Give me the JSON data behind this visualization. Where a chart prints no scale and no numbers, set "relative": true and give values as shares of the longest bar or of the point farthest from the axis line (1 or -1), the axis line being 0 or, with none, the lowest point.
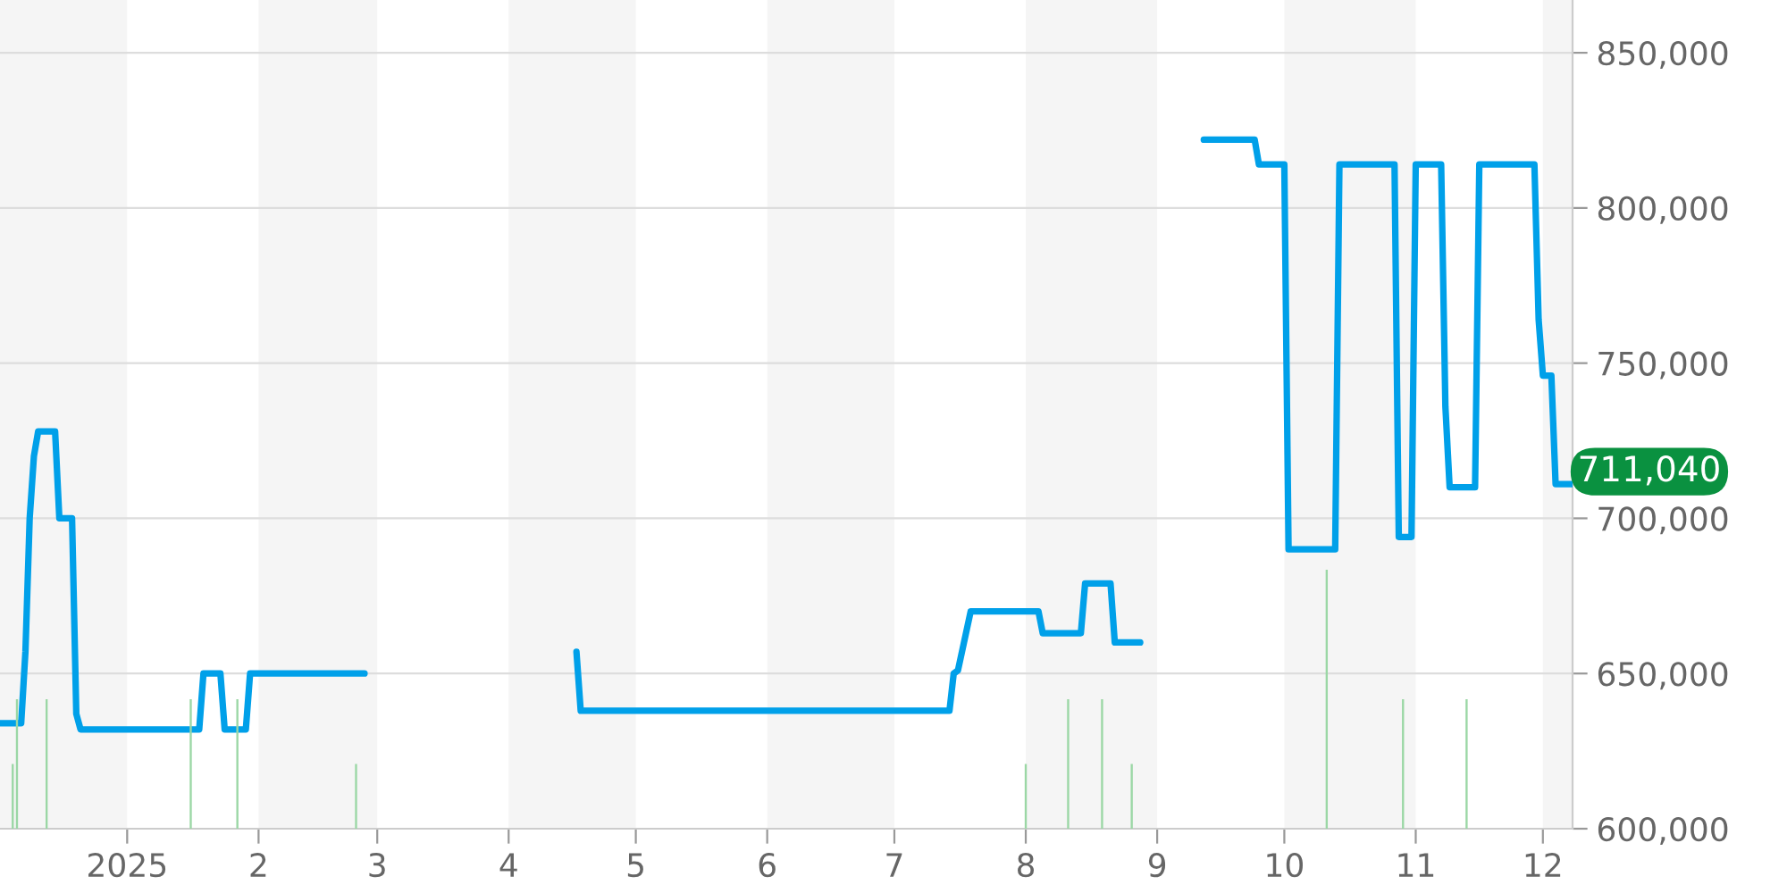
{
  "chart_data": [
    {
      "type": "line",
      "x": [
        "2024-12-02",
        "2024-12-07",
        "2024-12-08",
        "2024-12-09",
        "2024-12-10",
        "2024-12-11",
        "2024-12-15",
        "2024-12-16",
        "2024-12-19",
        "2024-12-20",
        "2024-12-21",
        "2025-01-18",
        "2025-01-19",
        "2025-01-23",
        "2025-01-24",
        "2025-01-29",
        "2025-01-30",
        "2025-02-26",
        "2025-03-20",
        "2025-04-17",
        "2025-04-18",
        "2025-07-14",
        "2025-07-15",
        "2025-07-16",
        "2025-07-19",
        "2025-08-04",
        "2025-08-05",
        "2025-08-14",
        "2025-08-15",
        "2025-08-21",
        "2025-08-22",
        "2025-08-28",
        "2025-09-05",
        "2025-09-12",
        "2025-09-24",
        "2025-09-25",
        "2025-10-01",
        "2025-10-02",
        "2025-10-13",
        "2025-10-14",
        "2025-10-27",
        "2025-10-28",
        "2025-10-31",
        "2025-11-01",
        "2025-11-07",
        "2025-11-08",
        "2025-11-09",
        "2025-11-15",
        "2025-11-16",
        "2025-11-29",
        "2025-11-30",
        "2025-12-01",
        "2025-12-03",
        "2025-12-04",
        "2025-12-08"
      ],
      "series": [
        {
          "color": "#00a0e9",
          "values": [
            634000,
            634000,
            657000,
            700000,
            720000,
            728000,
            728000,
            700000,
            700000,
            637000,
            632000,
            632000,
            650000,
            650000,
            632000,
            632000,
            650000,
            650000,
            null,
            657000,
            638000,
            638000,
            650000,
            651000,
            670000,
            670000,
            663000,
            663000,
            679000,
            679000,
            660000,
            660000,
            null,
            822000,
            822000,
            814000,
            814000,
            690000,
            690000,
            814000,
            814000,
            694000,
            694000,
            814000,
            814000,
            736000,
            710000,
            710000,
            814000,
            814000,
            764000,
            746000,
            746000,
            711000,
            711040
          ]
        }
      ],
      "xlim": [
        "2024-12-02",
        "2025-12-08"
      ],
      "xticks": [
        {
          "value": "2025-01-01",
          "label": "2025"
        },
        {
          "value": "2025-02-01",
          "label": "2"
        },
        {
          "value": "2025-03-01",
          "label": "3"
        },
        {
          "value": "2025-04-01",
          "label": "4"
        },
        {
          "value": "2025-05-01",
          "label": "5"
        },
        {
          "value": "2025-06-01",
          "label": "6"
        },
        {
          "value": "2025-07-01",
          "label": "7"
        },
        {
          "value": "2025-08-01",
          "label": "8"
        },
        {
          "value": "2025-09-01",
          "label": "9"
        },
        {
          "value": "2025-10-01",
          "label": "10"
        },
        {
          "value": "2025-11-01",
          "label": "11"
        },
        {
          "value": "2025-12-01",
          "label": "12"
        }
      ],
      "ylim": [
        600000,
        867000
      ],
      "yticks": [
        {
          "value": 600000,
          "label": "600,000"
        },
        {
          "value": 650000,
          "label": "650,000"
        },
        {
          "value": 700000,
          "label": "700,000"
        },
        {
          "value": 750000,
          "label": "750,000"
        },
        {
          "value": 800000,
          "label": "800,000"
        },
        {
          "value": 850000,
          "label": "850,000"
        }
      ],
      "grid": "y",
      "marker": "none",
      "line_style": "solid",
      "bands": [
        {
          "axis": "x",
          "from": "2024-12-02",
          "to": "2025-01-01",
          "color": "#f5f5f5"
        },
        {
          "axis": "x",
          "from": "2025-02-01",
          "to": "2025-03-01",
          "color": "#f5f5f5"
        },
        {
          "axis": "x",
          "from": "2025-04-01",
          "to": "2025-05-01",
          "color": "#f5f5f5"
        },
        {
          "axis": "x",
          "from": "2025-06-01",
          "to": "2025-07-01",
          "color": "#f5f5f5"
        },
        {
          "axis": "x",
          "from": "2025-08-01",
          "to": "2025-09-01",
          "color": "#f5f5f5"
        },
        {
          "axis": "x",
          "from": "2025-10-01",
          "to": "2025-11-01",
          "color": "#f5f5f5"
        },
        {
          "axis": "x",
          "from": "2025-12-01",
          "to": "2025-12-08",
          "color": "#f5f5f5"
        }
      ],
      "annotations": [
        {
          "text": "711,040",
          "x": "2025-12-08",
          "y": 711040
        }
      ]
    },
    {
      "type": "bar",
      "relative": true,
      "color": "#9bd7a5",
      "x": [
        "2024-12-05",
        "2024-12-06",
        "2024-12-13",
        "2025-01-16",
        "2025-01-27",
        "2025-02-24",
        "2025-08-01",
        "2025-08-11",
        "2025-08-19",
        "2025-08-26",
        "2025-10-11",
        "2025-10-29",
        "2025-11-13"
      ],
      "values": [
        0.25,
        0.5,
        0.5,
        0.5,
        0.5,
        0.25,
        0.25,
        0.5,
        0.5,
        0.25,
        1,
        0.5,
        0.5
      ],
      "xlim": [
        "2024-12-02",
        "2025-12-08"
      ]
    }
  ]
}
